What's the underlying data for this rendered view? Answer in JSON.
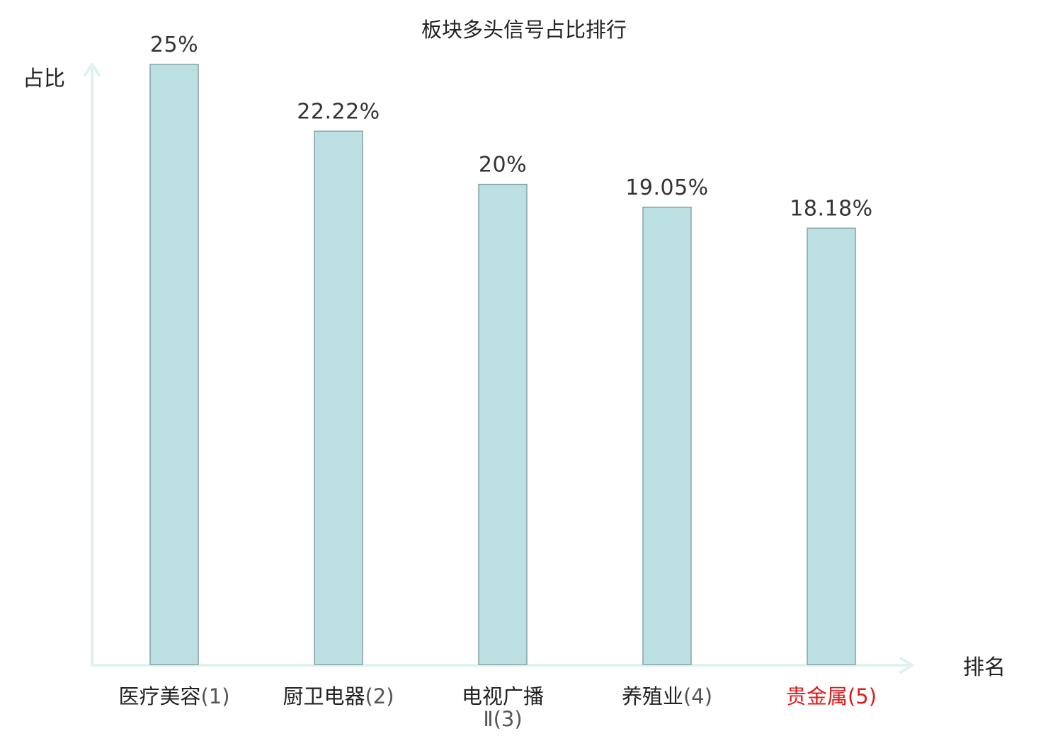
{
  "chart_data": {
    "type": "bar",
    "title": "板块多头信号占比排行",
    "xlabel": "排名",
    "ylabel": "占比",
    "ylim": [
      0,
      25
    ],
    "grid": false,
    "legend": "none",
    "categories": [
      {
        "name": "医疗美容",
        "rank": "(1)"
      },
      {
        "name": "厨卫电器",
        "rank": "(2)"
      },
      {
        "name": "电视广播",
        "rank": "Ⅱ(3)"
      },
      {
        "name": "养殖业",
        "rank": "(4)"
      },
      {
        "name": "贵金属",
        "rank": "(5)"
      }
    ],
    "values": [
      25,
      22.22,
      20,
      19.05,
      18.18
    ],
    "value_labels": [
      "25%",
      "22.22%",
      "20%",
      "19.05%",
      "18.18%"
    ],
    "highlighted_index": 4,
    "colors": {
      "bar_fill": "#bce0e2",
      "bar_stroke": "#86a3a6",
      "axis": "#dff2f0",
      "text": "#222222",
      "rank_text": "#555555",
      "highlight": "#e01a1a"
    }
  }
}
